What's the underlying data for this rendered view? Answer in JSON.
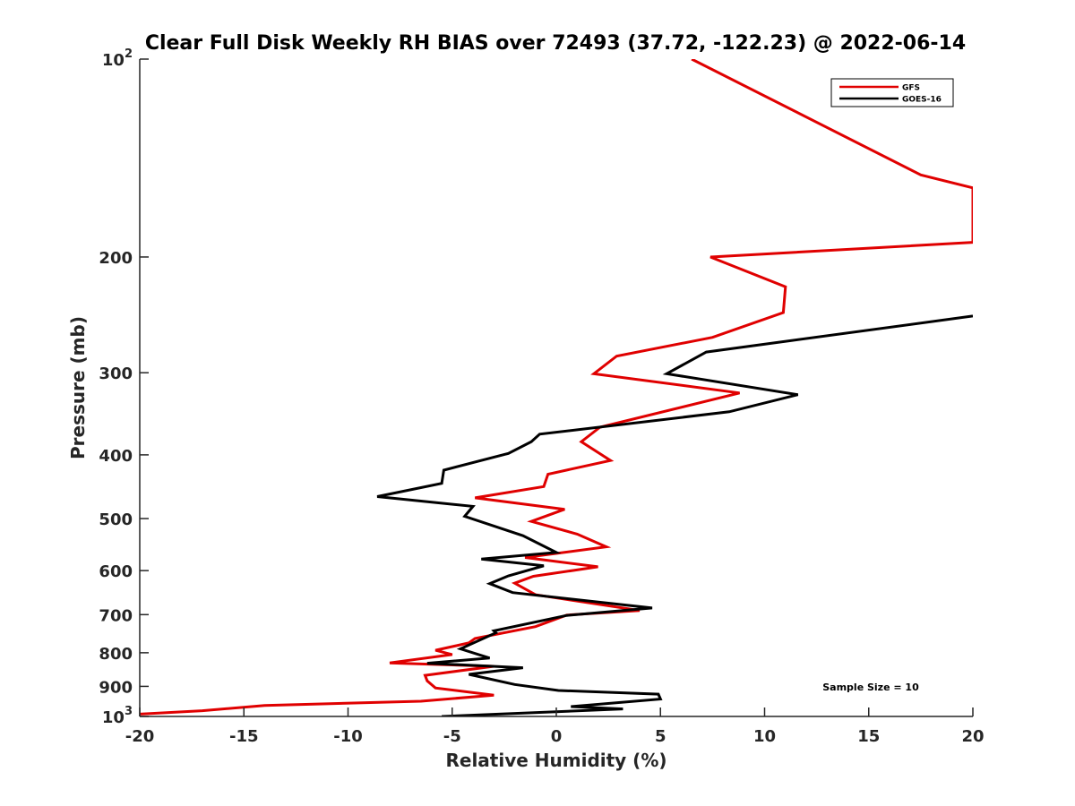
{
  "chart_data": {
    "type": "line",
    "title": "Clear Full Disk Weekly RH BIAS over 72493 (37.72, -122.23) @ 2022-06-14",
    "xlabel": "Relative Humidity (%)",
    "ylabel": "Pressure (mb)",
    "xlim": [
      -20,
      20
    ],
    "ylim": [
      100,
      1000
    ],
    "y_scale": "log",
    "y_reversed": true,
    "grid": false,
    "legend_position": "top-right",
    "x_ticks": [
      -20,
      -15,
      -10,
      -5,
      0,
      5,
      10,
      15,
      20
    ],
    "x_tick_labels": [
      "-20",
      "-15",
      "-10",
      "-5",
      "0",
      "5",
      "10",
      "15",
      "20"
    ],
    "y_ticks": [
      {
        "value": 100,
        "base": "10",
        "exp": "2"
      },
      {
        "value": 200,
        "label": "200"
      },
      {
        "value": 300,
        "label": "300"
      },
      {
        "value": 400,
        "label": "400"
      },
      {
        "value": 500,
        "label": "500"
      },
      {
        "value": 600,
        "label": "600"
      },
      {
        "value": 700,
        "label": "700"
      },
      {
        "value": 800,
        "label": "800"
      },
      {
        "value": 900,
        "label": "900"
      },
      {
        "value": 1000,
        "base": "10",
        "exp": "3"
      }
    ],
    "annotation": "Sample Size = 10",
    "series": [
      {
        "name": "GFS",
        "color": "#e00000",
        "points": [
          [
            6.5,
            100
          ],
          [
            17.5,
            150
          ],
          [
            20,
            157
          ],
          [
            20,
            190
          ],
          [
            7.4,
            200
          ],
          [
            11,
            222
          ],
          [
            10.9,
            243
          ],
          [
            7.5,
            265
          ],
          [
            2.9,
            283
          ],
          [
            1.8,
            301
          ],
          [
            8.8,
            322
          ],
          [
            2.1,
            363
          ],
          [
            1.2,
            382
          ],
          [
            2.6,
            408
          ],
          [
            -0.4,
            428
          ],
          [
            -0.6,
            447
          ],
          [
            -3.9,
            465
          ],
          [
            0.4,
            484
          ],
          [
            -1.2,
            505
          ],
          [
            1.0,
            528
          ],
          [
            2.4,
            552
          ],
          [
            -1.5,
            573
          ],
          [
            2.0,
            592
          ],
          [
            -1.1,
            612
          ],
          [
            -2.0,
            627
          ],
          [
            -1.0,
            653
          ],
          [
            4.0,
            690
          ],
          [
            0.5,
            701
          ],
          [
            -1.0,
            730
          ],
          [
            -3.9,
            761
          ],
          [
            -4.2,
            773
          ],
          [
            -5.8,
            793
          ],
          [
            -5.0,
            805
          ],
          [
            -8.0,
            829
          ],
          [
            -3.0,
            839
          ],
          [
            -6.3,
            866
          ],
          [
            -6.2,
            883
          ],
          [
            -5.8,
            905
          ],
          [
            -3.0,
            928
          ],
          [
            -6.5,
            948
          ],
          [
            -14.0,
            962
          ],
          [
            -17.0,
            980
          ],
          [
            -20,
            992
          ]
        ]
      },
      {
        "name": "GOES-16",
        "color": "#000000",
        "points": [
          [
            20,
            246
          ],
          [
            7.2,
            279
          ],
          [
            5.3,
            301
          ],
          [
            11.6,
            324
          ],
          [
            8.3,
            344
          ],
          [
            -0.8,
            372
          ],
          [
            -1.2,
            382
          ],
          [
            -2.3,
            398
          ],
          [
            -5.4,
            422
          ],
          [
            -5.5,
            442
          ],
          [
            -8.6,
            463
          ],
          [
            -4.0,
            479
          ],
          [
            -4.4,
            496
          ],
          [
            -1.6,
            531
          ],
          [
            0,
            563
          ],
          [
            -3.6,
            576
          ],
          [
            -0.6,
            590
          ],
          [
            -2.3,
            611
          ],
          [
            -3.2,
            628
          ],
          [
            -2.1,
            648
          ],
          [
            4.6,
            684
          ],
          [
            0.5,
            702
          ],
          [
            -3.0,
            741
          ],
          [
            -2.9,
            746
          ],
          [
            -4.6,
            789
          ],
          [
            -3.2,
            815
          ],
          [
            -6.2,
            830
          ],
          [
            -1.6,
            843
          ],
          [
            -4.2,
            863
          ],
          [
            -2.0,
            894
          ],
          [
            0.1,
            913
          ],
          [
            4.9,
            925
          ],
          [
            5.0,
            941
          ],
          [
            0.7,
            966
          ],
          [
            3.2,
            974
          ],
          [
            -5.5,
            1000
          ]
        ]
      }
    ]
  }
}
